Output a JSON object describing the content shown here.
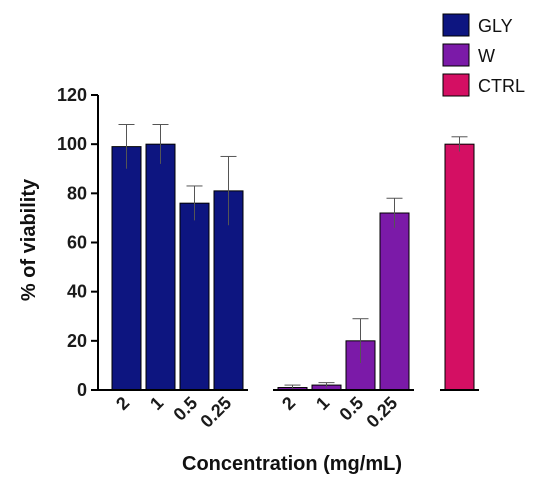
{
  "chart_data": {
    "type": "bar",
    "xlabel": "Concentration (mg/mL)",
    "ylabel": "% of viability",
    "ylim": [
      0,
      120
    ],
    "yticks": [
      "0",
      "20",
      "40",
      "60",
      "80",
      "100",
      "120"
    ],
    "legend_position": "top-right",
    "series": [
      {
        "name": "GLY",
        "color": "#0d1580",
        "categories": [
          "2",
          "1",
          "0.5",
          "0.25"
        ],
        "values": [
          99,
          100,
          76,
          81
        ],
        "errors": [
          9,
          8,
          7,
          14
        ]
      },
      {
        "name": "W",
        "color": "#7b1aa8",
        "categories": [
          "2",
          "1",
          "0.5",
          "0.25"
        ],
        "values": [
          1,
          2,
          20,
          72
        ],
        "errors": [
          1,
          1,
          9,
          6
        ]
      },
      {
        "name": "CTRL",
        "color": "#d40f63",
        "categories": [
          ""
        ],
        "values": [
          100
        ],
        "errors": [
          3
        ]
      }
    ]
  }
}
